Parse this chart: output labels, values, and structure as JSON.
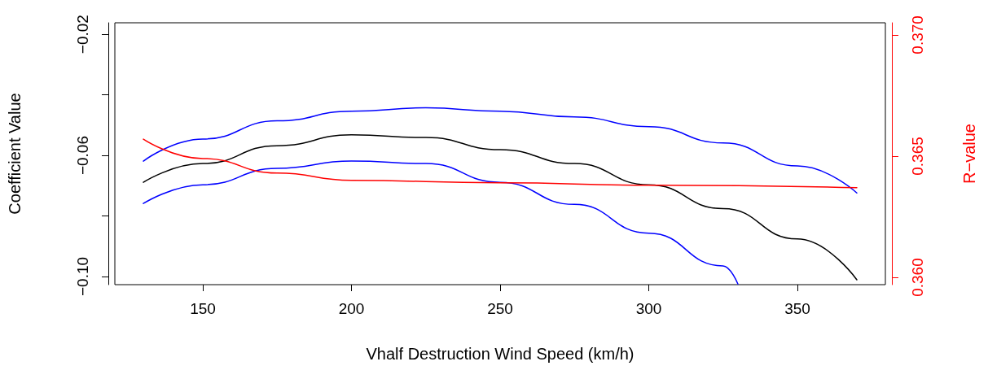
{
  "chart_data": {
    "type": "line",
    "xlabel": "Vhalf Destruction Wind Speed (km/h)",
    "ylabel": "Coefficient Value",
    "y2label": "R−value",
    "xlim": [
      120.4,
      379.6
    ],
    "xticks": [
      150,
      200,
      250,
      300,
      350
    ],
    "ylim": [
      -0.1027,
      -0.0162
    ],
    "yticks": [
      {
        "value": -0.1,
        "label": "−0.10"
      },
      {
        "value": -0.08,
        "label": null
      },
      {
        "value": -0.06,
        "label": "−0.06"
      },
      {
        "value": -0.04,
        "label": null
      },
      {
        "value": -0.02,
        "label": "−0.02"
      }
    ],
    "y2lim": [
      0.3597,
      0.3705
    ],
    "y2ticks": [
      {
        "value": 0.36,
        "label": "0.360"
      },
      0.365,
      {
        "value": 0.37,
        "label": "0.370"
      }
    ],
    "marker": "none",
    "grid": false,
    "series": [
      {
        "color": "#0000ff",
        "x": [
          130,
          150,
          175,
          200,
          225,
          250,
          275,
          300,
          325,
          350,
          370
        ],
        "values": [
          -0.0619,
          -0.0546,
          -0.0486,
          -0.0454,
          -0.0443,
          -0.0454,
          -0.0473,
          -0.0505,
          -0.0559,
          -0.0635,
          -0.0724
        ]
      },
      {
        "color": "#000000",
        "x": [
          130,
          150,
          175,
          200,
          225,
          250,
          275,
          300,
          325,
          350,
          370
        ],
        "values": [
          -0.0689,
          -0.0627,
          -0.0568,
          -0.0532,
          -0.0541,
          -0.0581,
          -0.0627,
          -0.0697,
          -0.0776,
          -0.0876,
          -0.1011
        ]
      },
      {
        "color": "#0000ff",
        "x": [
          130,
          150,
          175,
          200,
          225,
          250,
          275,
          300,
          325,
          330
        ],
        "values": [
          -0.0759,
          -0.0697,
          -0.0643,
          -0.0619,
          -0.0627,
          -0.0689,
          -0.0762,
          -0.0857,
          -0.0965,
          -0.1025
        ]
      },
      {
        "color": "#ff0000",
        "axis": "y2",
        "x": [
          130,
          150,
          175,
          200,
          250,
          300,
          370
        ],
        "values": [
          0.3657,
          0.3649,
          0.3643,
          0.364,
          0.3639,
          0.3638,
          0.3637
        ]
      }
    ]
  }
}
